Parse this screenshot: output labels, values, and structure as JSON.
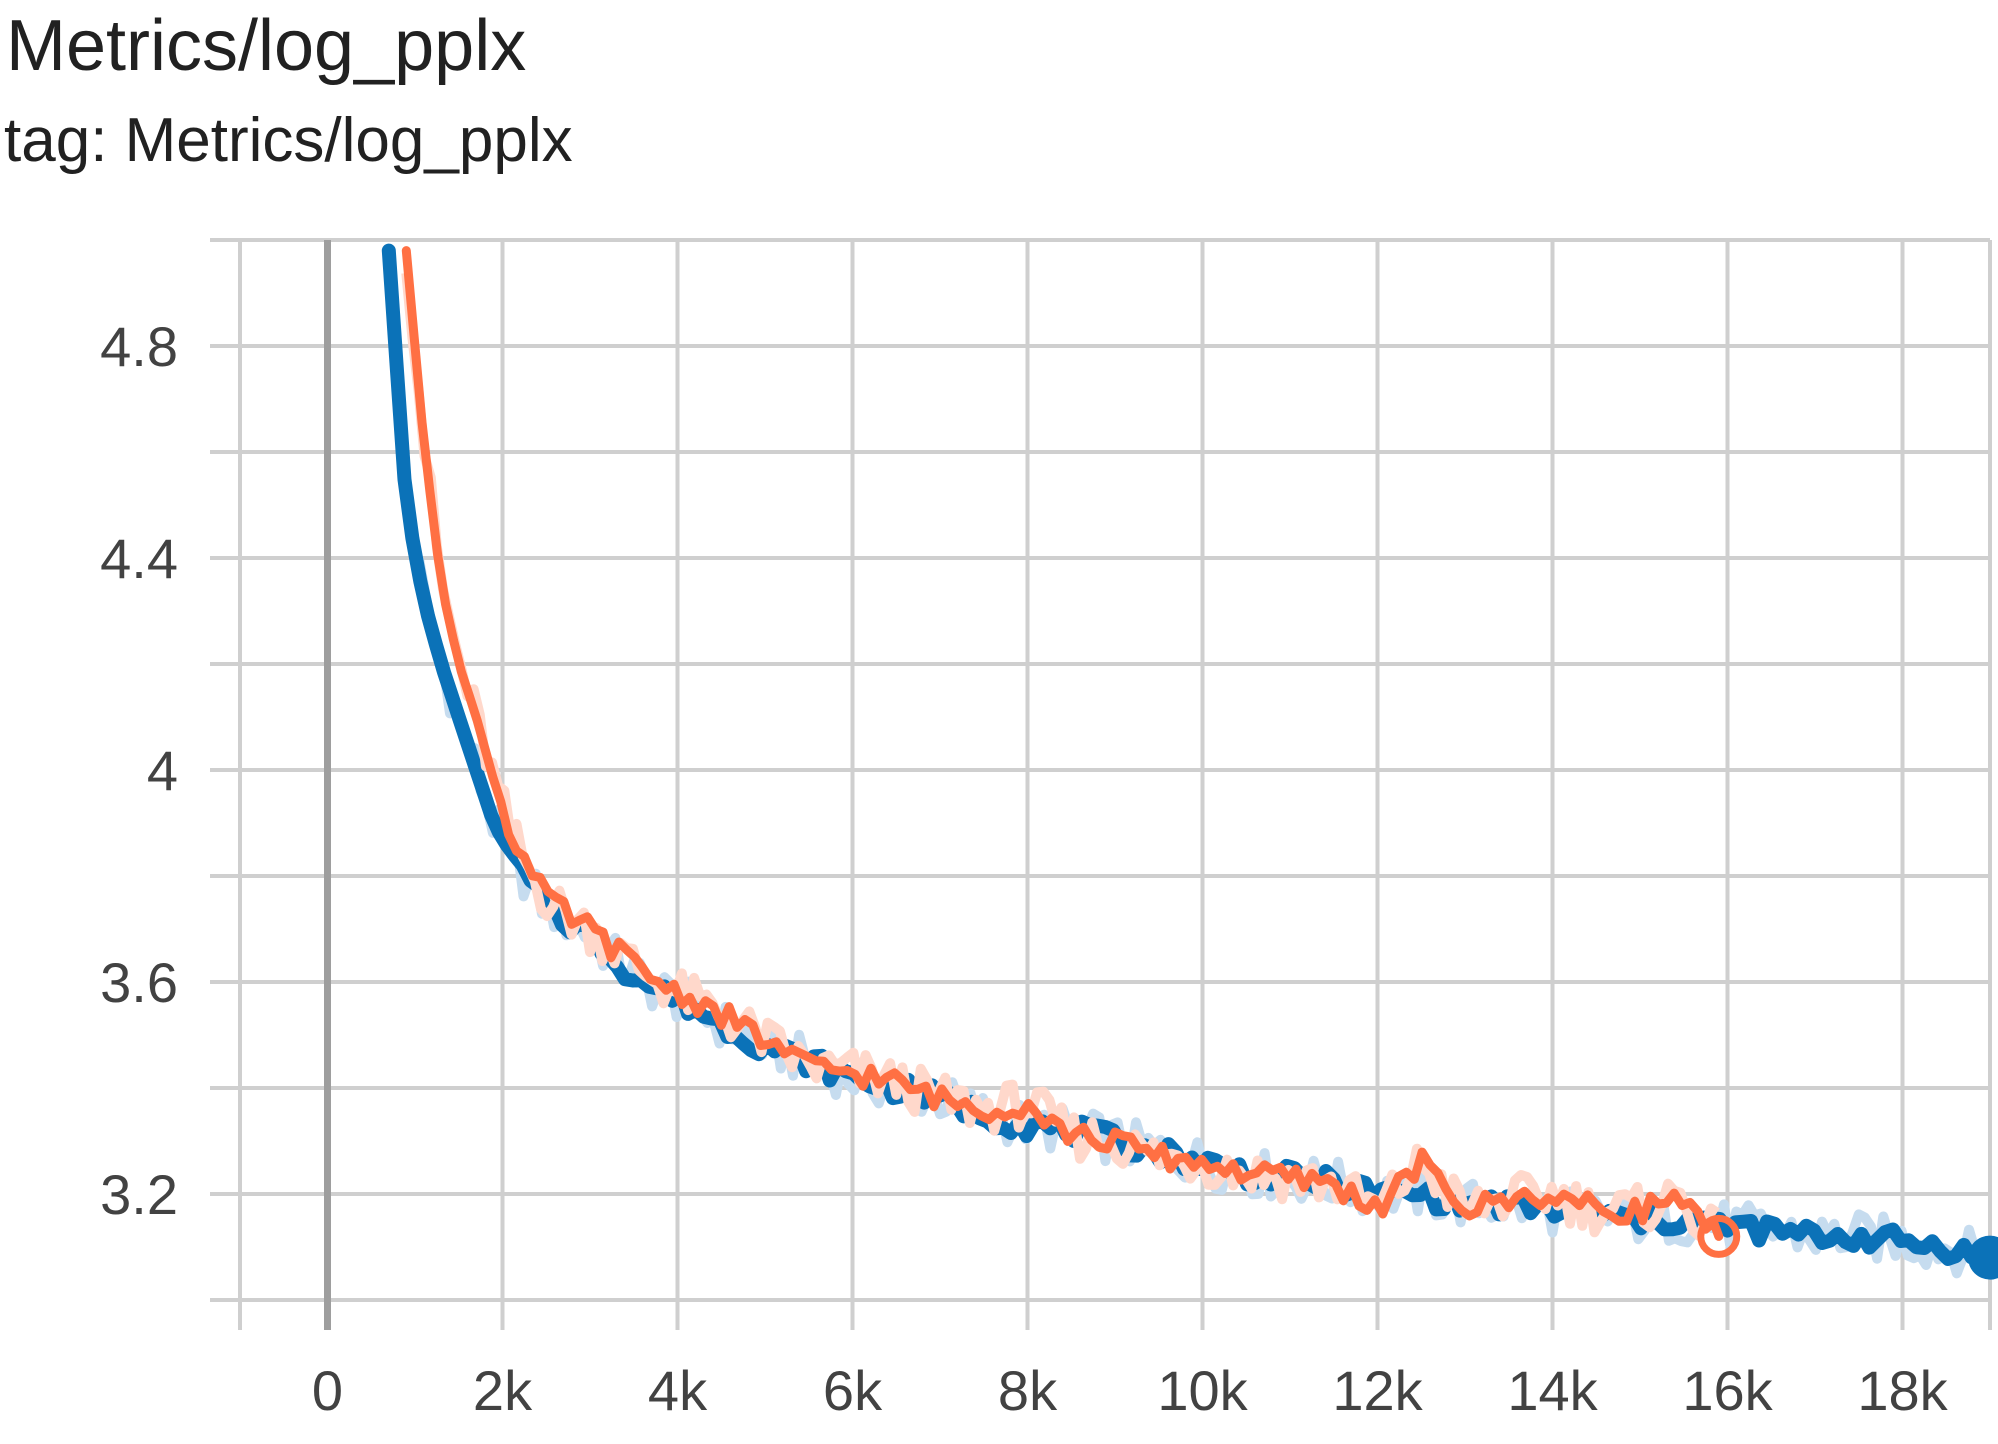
{
  "header": {
    "title": "Metrics/log_pplx",
    "subtitle": "tag: Metrics/log_pplx"
  },
  "colors": {
    "series_blue": "#0b72b8",
    "series_blue_raw": "#c6dcef",
    "series_orange": "#ff7043",
    "series_orange_raw": "#ffd8cb",
    "grid": "#cfcfcf",
    "zero_axis": "#9e9e9e"
  },
  "chart_data": {
    "type": "line",
    "title": "Metrics/log_pplx",
    "subtitle": "tag: Metrics/log_pplx",
    "xlim": [
      -1000,
      19000
    ],
    "ylim": [
      3.0,
      5.0
    ],
    "x_ticks": [
      0,
      2000,
      4000,
      6000,
      8000,
      10000,
      12000,
      14000,
      16000,
      18000
    ],
    "x_tick_labels": [
      "0",
      "2k",
      "4k",
      "6k",
      "8k",
      "10k",
      "12k",
      "14k",
      "16k",
      "18k"
    ],
    "y_ticks": [
      3.2,
      3.6,
      4.0,
      4.4,
      4.8
    ],
    "y_tick_labels": [
      "3.2",
      "3.6",
      "4",
      "4.4",
      "4.8"
    ],
    "grid": true,
    "series": [
      {
        "color": "#0b72b8",
        "x": [
          700,
          900,
          1100,
          1300,
          1500,
          1700,
          1900,
          2100,
          2400,
          2700,
          3000,
          3300,
          3600,
          4000,
          4500,
          5000,
          5500,
          6000,
          6500,
          7000,
          7500,
          8000,
          8500,
          9000,
          9500,
          10000,
          10500,
          11000,
          11500,
          12000,
          12500,
          13000,
          13500,
          14000,
          14500,
          15000,
          15500,
          16000,
          16500,
          17000,
          17500,
          18000,
          18500,
          19000
        ],
        "y": [
          4.98,
          4.5,
          4.32,
          4.2,
          4.1,
          4.0,
          3.9,
          3.84,
          3.76,
          3.72,
          3.69,
          3.64,
          3.6,
          3.57,
          3.52,
          3.48,
          3.45,
          3.42,
          3.4,
          3.38,
          3.35,
          3.33,
          3.32,
          3.3,
          3.28,
          3.26,
          3.24,
          3.23,
          3.22,
          3.2,
          3.2,
          3.18,
          3.18,
          3.17,
          3.16,
          3.15,
          3.15,
          3.14,
          3.13,
          3.12,
          3.12,
          3.11,
          3.1,
          3.08
        ]
      },
      {
        "color": "#ff7043",
        "x": [
          900,
          1100,
          1300,
          1500,
          1700,
          1900,
          2100,
          2400,
          2700,
          3000,
          3300,
          3600,
          4000,
          4500,
          5000,
          5500,
          6000,
          6500,
          7000,
          7500,
          8000,
          8500,
          9000,
          9500,
          10000,
          10500,
          11000,
          11500,
          12000,
          12500,
          13000,
          13500,
          14000,
          14500,
          15000,
          15500,
          15700,
          15900
        ],
        "y": [
          4.98,
          4.62,
          4.35,
          4.2,
          4.1,
          3.98,
          3.88,
          3.78,
          3.73,
          3.7,
          3.66,
          3.62,
          3.58,
          3.54,
          3.49,
          3.44,
          3.43,
          3.41,
          3.38,
          3.36,
          3.37,
          3.31,
          3.3,
          3.27,
          3.26,
          3.24,
          3.23,
          3.22,
          3.17,
          3.26,
          3.17,
          3.19,
          3.2,
          3.17,
          3.17,
          3.2,
          3.14,
          3.12
        ]
      }
    ]
  }
}
